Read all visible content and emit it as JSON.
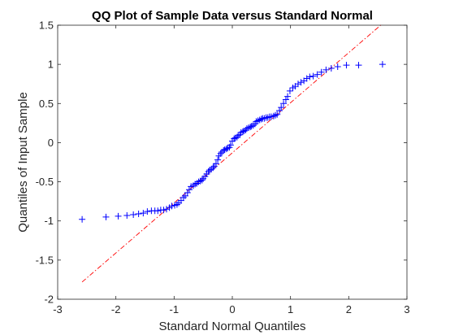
{
  "chart_data": {
    "type": "scatter",
    "title": "QQ Plot of Sample Data versus Standard Normal",
    "xlabel": "Standard Normal Quantiles",
    "ylabel": "Quantiles of Input Sample",
    "xlim": [
      -3,
      3
    ],
    "ylim": [
      -2,
      1.5
    ],
    "xticks": [
      -3,
      -2,
      -1,
      0,
      1,
      2,
      3
    ],
    "xtick_labels": [
      "-3",
      "-2",
      "-1",
      "0",
      "1",
      "2",
      "3"
    ],
    "yticks": [
      -2,
      -1.5,
      -1,
      -0.5,
      0,
      0.5,
      1,
      1.5
    ],
    "ytick_labels": [
      "-2",
      "-1.5",
      "-1",
      "-0.5",
      "0",
      "0.5",
      "1",
      "1.5"
    ],
    "grid": false,
    "colors": {
      "points": "#0000ff",
      "reference_line": "#ff0000",
      "axes": "#262626"
    },
    "series": [
      {
        "marker": "plus",
        "x": [
          -2.58,
          -2.17,
          -1.96,
          -1.81,
          -1.7,
          -1.61,
          -1.53,
          -1.46,
          -1.39,
          -1.33,
          -1.28,
          -1.23,
          -1.18,
          -1.13,
          -1.08,
          -1.04,
          -0.99,
          -0.95,
          -0.92,
          -0.88,
          -0.84,
          -0.81,
          -0.77,
          -0.74,
          -0.71,
          -0.67,
          -0.64,
          -0.61,
          -0.58,
          -0.55,
          -0.52,
          -0.5,
          -0.47,
          -0.44,
          -0.41,
          -0.39,
          -0.36,
          -0.33,
          -0.31,
          -0.28,
          -0.25,
          -0.23,
          -0.2,
          -0.18,
          -0.15,
          -0.13,
          -0.1,
          -0.08,
          -0.05,
          -0.03,
          0.0,
          0.03,
          0.05,
          0.08,
          0.1,
          0.13,
          0.15,
          0.18,
          0.2,
          0.23,
          0.25,
          0.28,
          0.31,
          0.33,
          0.36,
          0.39,
          0.41,
          0.44,
          0.47,
          0.5,
          0.52,
          0.55,
          0.58,
          0.61,
          0.64,
          0.67,
          0.71,
          0.74,
          0.77,
          0.81,
          0.84,
          0.88,
          0.92,
          0.95,
          0.99,
          1.04,
          1.08,
          1.13,
          1.18,
          1.23,
          1.28,
          1.33,
          1.39,
          1.46,
          1.53,
          1.61,
          1.7,
          1.81,
          1.96,
          2.17,
          2.58
        ],
        "y": [
          -0.98,
          -0.95,
          -0.94,
          -0.93,
          -0.92,
          -0.91,
          -0.9,
          -0.88,
          -0.87,
          -0.87,
          -0.87,
          -0.86,
          -0.86,
          -0.85,
          -0.83,
          -0.81,
          -0.8,
          -0.79,
          -0.77,
          -0.74,
          -0.7,
          -0.68,
          -0.64,
          -0.6,
          -0.56,
          -0.55,
          -0.53,
          -0.52,
          -0.5,
          -0.49,
          -0.48,
          -0.46,
          -0.43,
          -0.4,
          -0.37,
          -0.35,
          -0.34,
          -0.32,
          -0.3,
          -0.27,
          -0.22,
          -0.17,
          -0.14,
          -0.12,
          -0.1,
          -0.09,
          -0.08,
          -0.07,
          -0.06,
          -0.03,
          0.02,
          0.05,
          0.06,
          0.07,
          0.09,
          0.1,
          0.13,
          0.14,
          0.15,
          0.16,
          0.18,
          0.19,
          0.2,
          0.21,
          0.22,
          0.24,
          0.27,
          0.28,
          0.29,
          0.3,
          0.31,
          0.31,
          0.32,
          0.32,
          0.33,
          0.33,
          0.34,
          0.35,
          0.36,
          0.41,
          0.45,
          0.5,
          0.55,
          0.59,
          0.66,
          0.7,
          0.72,
          0.75,
          0.77,
          0.79,
          0.82,
          0.84,
          0.85,
          0.87,
          0.9,
          0.93,
          0.95,
          0.97,
          0.99,
          0.99,
          1.0
        ]
      }
    ],
    "reference_line": {
      "style": "dash-dot",
      "x": [
        -2.58,
        2.58
      ],
      "y": [
        -1.78,
        1.52
      ]
    }
  }
}
